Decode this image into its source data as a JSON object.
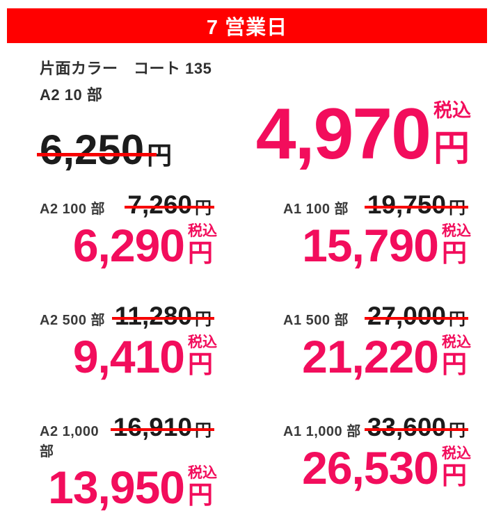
{
  "banner": {
    "label": "7 営業日"
  },
  "product": {
    "spec_line": "片面カラー　コート 135",
    "size_line": "A2 10 部"
  },
  "hero": {
    "old_price": "6,250",
    "new_price": "4,970"
  },
  "cells": [
    {
      "label": "A2 100 部",
      "old_price": "7,260",
      "new_price": "6,290"
    },
    {
      "label": "A1 100 部",
      "old_price": "19,750",
      "new_price": "15,790"
    },
    {
      "label": "A2 500 部",
      "old_price": "11,280",
      "new_price": "9,410"
    },
    {
      "label": "A1 500 部",
      "old_price": "27,000",
      "new_price": "21,220"
    },
    {
      "label": "A2 1,000 部",
      "old_price": "16,910",
      "new_price": "13,950"
    },
    {
      "label": "A1 1,000 部",
      "old_price": "33,600",
      "new_price": "26,530"
    }
  ],
  "units": {
    "yen": "円",
    "tax_included": "税込"
  },
  "colors": {
    "banner_red": "#ff0000",
    "accent_pink": "#f20d5c",
    "strike_red": "#f60000",
    "text_dark": "#1c1c1c"
  }
}
